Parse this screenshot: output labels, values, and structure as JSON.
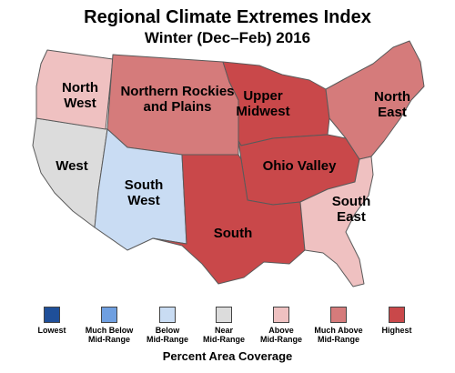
{
  "header": {
    "title": "Regional Climate Extremes Index",
    "subtitle": "Winter (Dec–Feb) 2016"
  },
  "regions": {
    "northwest": {
      "line1": "North",
      "line2": "West",
      "category": "above"
    },
    "nrockies": {
      "line1": "Northern Rockies",
      "line2": "and Plains",
      "category": "much_above"
    },
    "midwest": {
      "line1": "Upper",
      "line2": "Midwest",
      "category": "highest"
    },
    "northeast": {
      "line1": "North",
      "line2": "East",
      "category": "much_above"
    },
    "west": {
      "line1": "West",
      "line2": "",
      "category": "near"
    },
    "southwest": {
      "line1": "South",
      "line2": "West",
      "category": "below"
    },
    "ohiovalley": {
      "line1": "Ohio Valley",
      "line2": "",
      "category": "highest"
    },
    "south": {
      "line1": "South",
      "line2": "",
      "category": "highest"
    },
    "southeast": {
      "line1": "South",
      "line2": "East",
      "category": "above"
    }
  },
  "legend": {
    "title": "Percent Area Coverage",
    "items": [
      {
        "key": "lowest",
        "line1": "Lowest",
        "line2": "",
        "color": "#1f4f99"
      },
      {
        "key": "much_below",
        "line1": "Much Below",
        "line2": "Mid-Range",
        "color": "#6f9fe0"
      },
      {
        "key": "below",
        "line1": "Below",
        "line2": "Mid-Range",
        "color": "#c9dcf3"
      },
      {
        "key": "near",
        "line1": "Near",
        "line2": "Mid-Range",
        "color": "#dcdcdc"
      },
      {
        "key": "above",
        "line1": "Above",
        "line2": "Mid-Range",
        "color": "#efc1c1"
      },
      {
        "key": "much_above",
        "line1": "Much Above",
        "line2": "Mid-Range",
        "color": "#d57b7b"
      },
      {
        "key": "highest",
        "line1": "Highest",
        "line2": "",
        "color": "#c9484a"
      }
    ]
  }
}
